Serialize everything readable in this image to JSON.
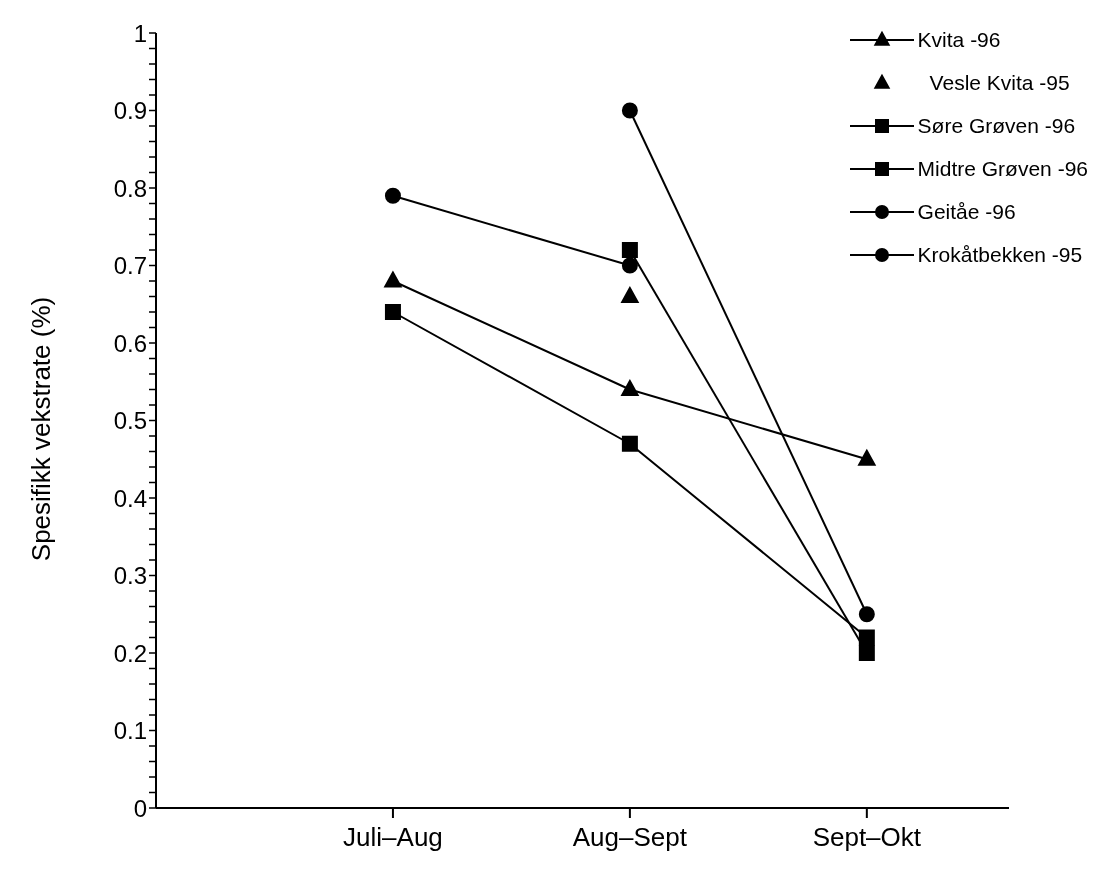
{
  "chart_data": {
    "type": "line",
    "ylabel": "Spesifikk vekstrate (%)",
    "categories": [
      "Juli–Aug",
      "Aug–Sept",
      "Sept–Okt"
    ],
    "series": [
      {
        "name": "Kvita -96",
        "color": "#000000",
        "marker": "triangle",
        "values": [
          0.68,
          0.54,
          0.45
        ]
      },
      {
        "name": "Vesle Kvita -95",
        "color": "#000000",
        "type": "scatter",
        "marker": "triangle",
        "values": [
          null,
          0.66,
          null
        ]
      },
      {
        "name": "Søre Grøven -96",
        "color": "#000000",
        "marker": "square",
        "values": [
          null,
          0.72,
          0.2
        ]
      },
      {
        "name": "Midtre Grøven -96",
        "color": "#000000",
        "marker": "square",
        "values": [
          0.64,
          0.47,
          0.22
        ]
      },
      {
        "name": "Geitåe -96",
        "color": "#000000",
        "marker": "circle",
        "values": [
          null,
          0.9,
          0.25
        ]
      },
      {
        "name": "Krokåtbekken -95",
        "color": "#000000",
        "marker": "circle",
        "values": [
          0.79,
          0.7,
          null
        ]
      }
    ],
    "ylim": [
      0,
      1
    ],
    "yticks": [
      0,
      {
        "value": 0.02,
        "label": null
      },
      {
        "value": 0.04,
        "label": null
      },
      {
        "value": 0.06,
        "label": null
      },
      {
        "value": 0.08,
        "label": null
      },
      0.1,
      {
        "value": 0.12,
        "label": null
      },
      {
        "value": 0.14,
        "label": null
      },
      {
        "value": 0.16,
        "label": null
      },
      {
        "value": 0.18,
        "label": null
      },
      0.2,
      {
        "value": 0.22,
        "label": null
      },
      {
        "value": 0.24,
        "label": null
      },
      {
        "value": 0.26,
        "label": null
      },
      {
        "value": 0.28,
        "label": null
      },
      0.3,
      {
        "value": 0.32,
        "label": null
      },
      {
        "value": 0.34,
        "label": null
      },
      {
        "value": 0.36,
        "label": null
      },
      {
        "value": 0.38,
        "label": null
      },
      0.4,
      {
        "value": 0.42,
        "label": null
      },
      {
        "value": 0.44,
        "label": null
      },
      {
        "value": 0.46,
        "label": null
      },
      {
        "value": 0.48,
        "label": null
      },
      0.5,
      {
        "value": 0.52,
        "label": null
      },
      {
        "value": 0.54,
        "label": null
      },
      {
        "value": 0.56,
        "label": null
      },
      {
        "value": 0.58,
        "label": null
      },
      0.6,
      {
        "value": 0.62,
        "label": null
      },
      {
        "value": 0.64,
        "label": null
      },
      {
        "value": 0.66,
        "label": null
      },
      {
        "value": 0.68,
        "label": null
      },
      0.7,
      {
        "value": 0.72,
        "label": null
      },
      {
        "value": 0.74,
        "label": null
      },
      {
        "value": 0.76,
        "label": null
      },
      {
        "value": 0.78,
        "label": null
      },
      0.8,
      {
        "value": 0.82,
        "label": null
      },
      {
        "value": 0.84,
        "label": null
      },
      {
        "value": 0.86,
        "label": null
      },
      {
        "value": 0.88,
        "label": null
      },
      0.9,
      {
        "value": 0.92,
        "label": null
      },
      {
        "value": 0.94,
        "label": null
      },
      {
        "value": 0.96,
        "label": null
      },
      {
        "value": 0.98,
        "label": null
      },
      1
    ],
    "grid": false,
    "legend": "top right",
    "line_style": "solid"
  }
}
